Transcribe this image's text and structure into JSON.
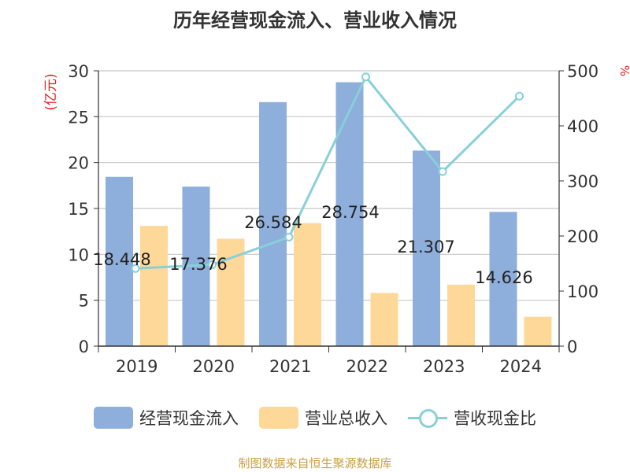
{
  "title": "历年经营现金流入、营业收入情况",
  "source": "制图数据来自恒生聚源数据库",
  "chart_data": {
    "type": "bar",
    "categories": [
      "2019",
      "2020",
      "2021",
      "2022",
      "2023",
      "2024"
    ],
    "series": [
      {
        "name": "经营现金流入",
        "type": "bar",
        "axis": "left",
        "color": "#8eaedb",
        "values": [
          18.448,
          17.376,
          26.584,
          28.754,
          21.307,
          14.626
        ]
      },
      {
        "name": "营业总收入",
        "type": "bar",
        "axis": "left",
        "color": "#fed898",
        "values": [
          13.1,
          11.7,
          13.4,
          5.8,
          6.7,
          3.2
        ]
      },
      {
        "name": "营收现金比",
        "type": "line",
        "axis": "right",
        "color": "#88d0d8",
        "values": [
          141,
          148,
          198,
          489,
          317,
          454
        ]
      }
    ],
    "data_labels": [
      "18.448",
      "17.376",
      "26.584",
      "28.754",
      "21.307",
      "14.626"
    ],
    "yleft": {
      "label": "(亿元)",
      "min": 0,
      "max": 30,
      "ticks": [
        "0",
        "5",
        "10",
        "15",
        "20",
        "25",
        "30"
      ]
    },
    "yright": {
      "label": "%",
      "min": 0,
      "max": 500,
      "ticks": [
        "0",
        "100",
        "200",
        "300",
        "400",
        "500"
      ]
    },
    "grid": true,
    "legend_position": "bottom"
  }
}
